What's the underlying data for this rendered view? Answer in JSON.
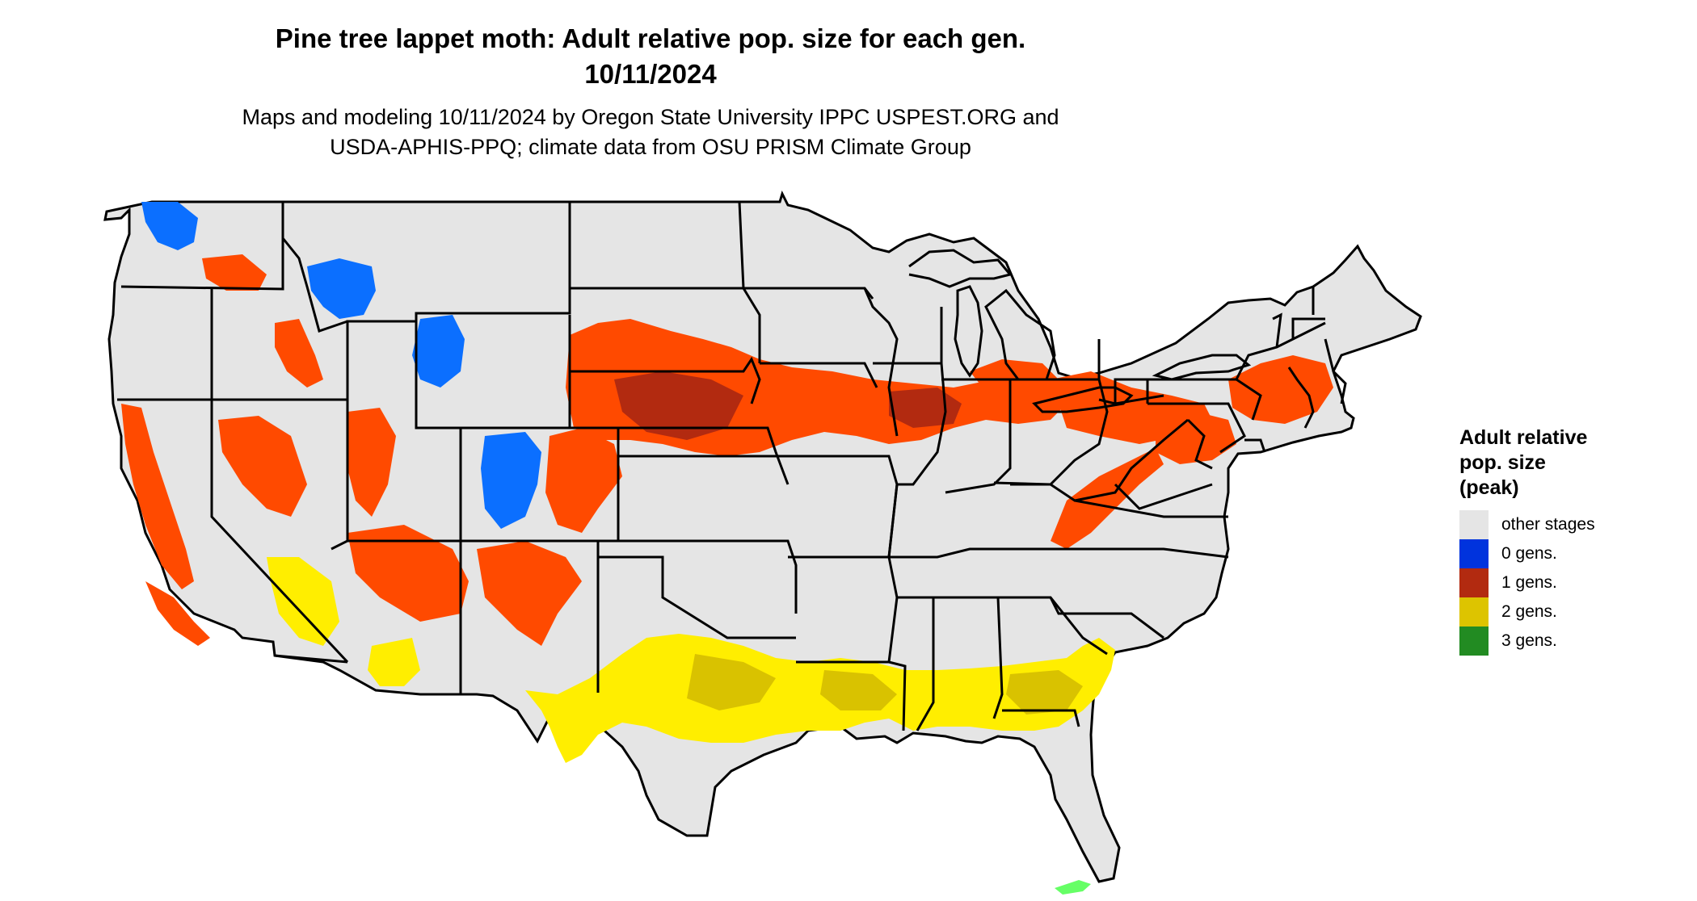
{
  "title": {
    "line1": "Pine tree lappet moth: Adult relative pop. size for each gen.",
    "line2": "10/11/2024"
  },
  "subtitle": {
    "line1": "Maps and modeling 10/11/2024 by Oregon State University IPPC USPEST.ORG and",
    "line2": "USDA-APHIS-PPQ; climate data from OSU PRISM Climate Group"
  },
  "map": {
    "region": "Contiguous United States",
    "base_color": "#e5e5e5",
    "border_color": "#000000"
  },
  "legend": {
    "title": [
      "Adult relative",
      "pop. size",
      "(peak)"
    ],
    "items": [
      {
        "label": "other stages",
        "color": "#e5e5e5"
      },
      {
        "label": "0 gens.",
        "color": "#0033dd"
      },
      {
        "label": "1 gens.",
        "color": "#b22a10"
      },
      {
        "label": "2 gens.",
        "color": "#ddc400"
      },
      {
        "label": "3 gens.",
        "color": "#228b22"
      }
    ]
  },
  "overlay_colors": {
    "one_gen_light": "#ff4a00",
    "one_gen_dark": "#b22a10",
    "two_gen_light": "#ffee00",
    "two_gen_dark": "#d9c200",
    "zero_gen": "#0b6fff",
    "three_gen": "#66ff66"
  }
}
